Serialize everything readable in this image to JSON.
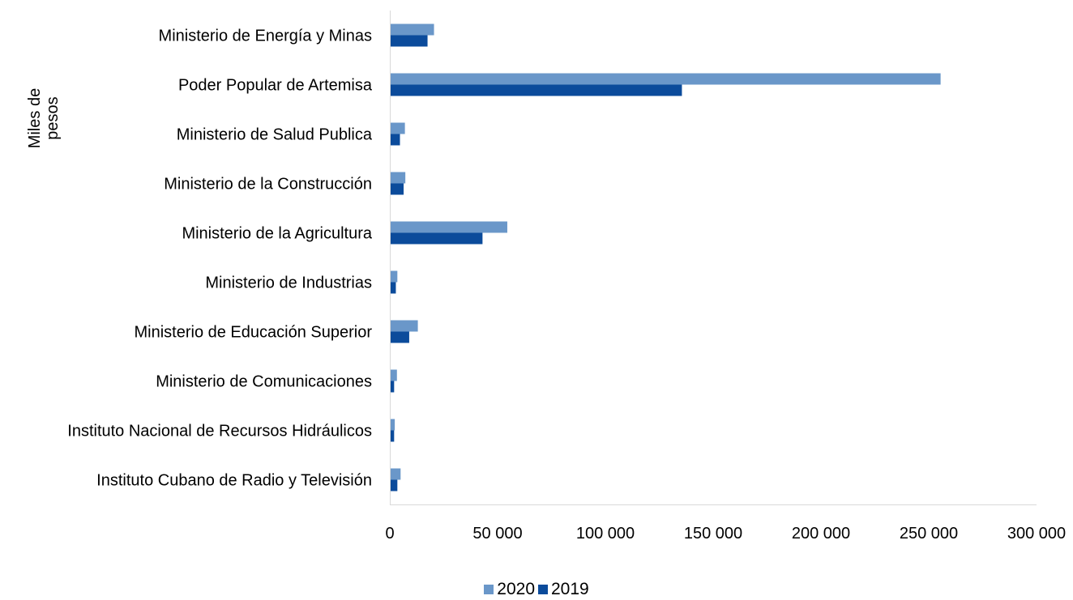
{
  "chart_data": {
    "type": "bar",
    "orientation": "horizontal",
    "ylabel_lines": [
      "Miles de",
      "pesos"
    ],
    "categories": [
      "Ministerio de Energía y Minas",
      "Poder Popular de Artemisa",
      "Ministerio de Salud Publica",
      "Ministerio de la Construcción",
      "Ministerio de la Agricultura",
      "Ministerio de Industrias",
      "Ministerio de Educación Superior",
      "Ministerio de Comunicaciones",
      "Instituto Nacional de Recursos Hidráulicos",
      "Instituto Cubano de Radio y Televisión"
    ],
    "series": [
      {
        "name": "2020",
        "color": "#6a97c9",
        "values": [
          20500,
          255500,
          7000,
          7200,
          54500,
          3500,
          13000,
          3300,
          2300,
          5000
        ]
      },
      {
        "name": "2019",
        "color": "#0b4b9b",
        "values": [
          17500,
          135500,
          4700,
          6400,
          43000,
          2800,
          9000,
          2000,
          2000,
          3500
        ]
      }
    ],
    "xlim": [
      0,
      300000
    ],
    "xticks": [
      0,
      50000,
      100000,
      150000,
      200000,
      250000,
      300000
    ],
    "xtick_labels": [
      "0",
      "50 000",
      "100 000",
      "150 000",
      "200 000",
      "250 000",
      "300 000"
    ],
    "grid": false,
    "legend_position": "bottom-center"
  }
}
